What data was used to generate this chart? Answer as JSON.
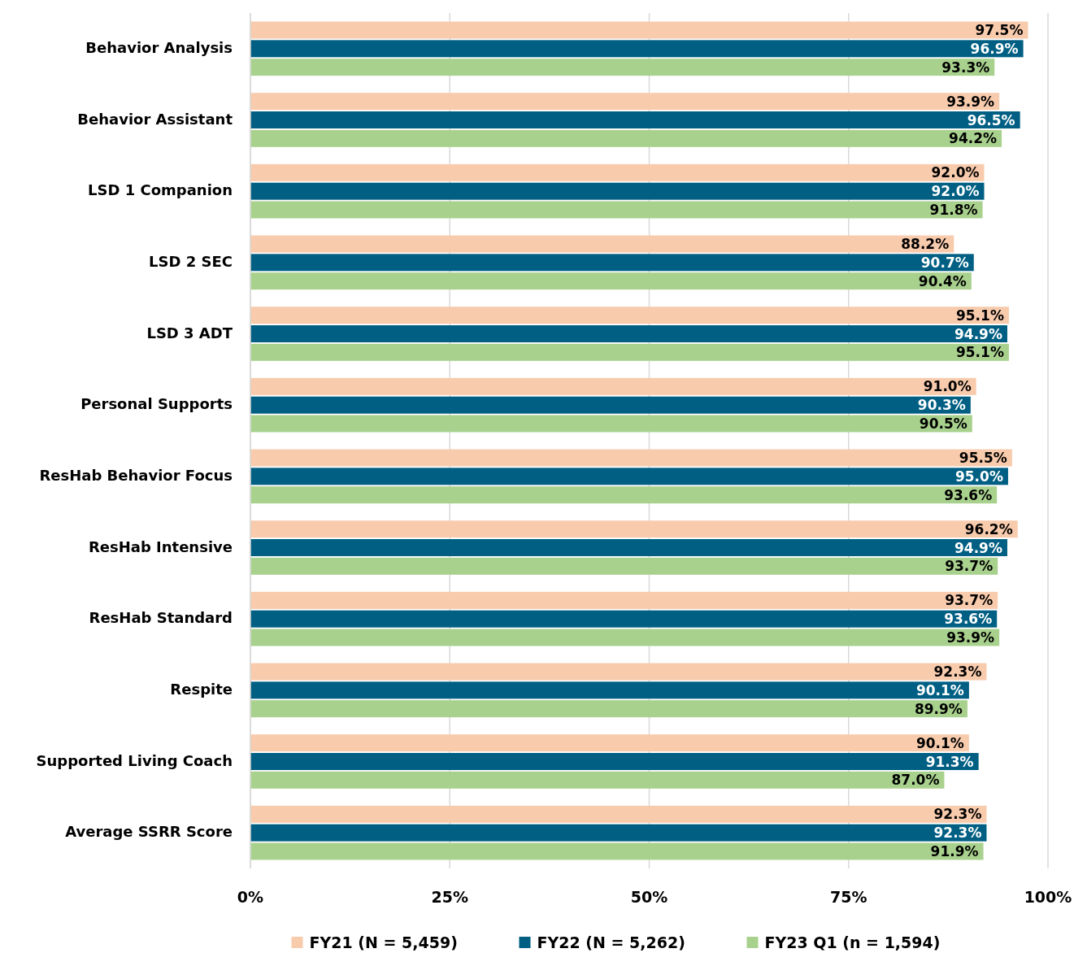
{
  "chart_data": {
    "type": "bar",
    "orientation": "horizontal",
    "categories": [
      "Behavior Analysis",
      "Behavior Assistant",
      "LSD 1 Companion",
      "LSD 2 SEC",
      "LSD 3 ADT",
      "Personal Supports",
      "ResHab Behavior Focus",
      "ResHab Intensive",
      "ResHab Standard",
      "Respite",
      "Supported Living Coach",
      "Average SSRR Score"
    ],
    "series": [
      {
        "name": "FY21 (N = 5,459)",
        "color": "#f8cbad",
        "values": [
          97.5,
          93.9,
          92.0,
          88.2,
          95.1,
          91.0,
          95.5,
          96.2,
          93.7,
          92.3,
          90.1,
          92.3
        ],
        "value_labels": [
          "97.5%",
          "93.9%",
          "92.0%",
          "88.2%",
          "95.1%",
          "91.0%",
          "95.5%",
          "96.2%",
          "93.7%",
          "92.3%",
          "90.1%",
          "92.3%"
        ]
      },
      {
        "name": "FY22 (N = 5,262)",
        "color": "#005f83",
        "values": [
          96.9,
          96.5,
          92.0,
          90.7,
          94.9,
          90.3,
          95.0,
          94.9,
          93.6,
          90.1,
          91.3,
          92.3
        ],
        "value_labels": [
          "96.9%",
          "96.5%",
          "92.0%",
          "90.7%",
          "94.9%",
          "90.3%",
          "95.0%",
          "94.9%",
          "93.6%",
          "90.1%",
          "91.3%",
          "92.3%"
        ]
      },
      {
        "name": "FY23 Q1 (n = 1,594)",
        "color": "#a9d18e",
        "values": [
          93.3,
          94.2,
          91.8,
          90.4,
          95.1,
          90.5,
          93.6,
          93.7,
          93.9,
          89.9,
          87.0,
          91.9
        ],
        "value_labels": [
          "93.3%",
          "94.2%",
          "91.8%",
          "90.4%",
          "95.1%",
          "90.5%",
          "93.6%",
          "93.7%",
          "93.9%",
          "89.9%",
          "87.0%",
          "91.9%"
        ]
      }
    ],
    "xlim": [
      0,
      100
    ],
    "xticks": [
      {
        "value": 0,
        "label": "0%"
      },
      {
        "value": 25,
        "label": "25%"
      },
      {
        "value": 50,
        "label": "50%"
      },
      {
        "value": 75,
        "label": "75%"
      },
      {
        "value": 100,
        "label": "100%"
      }
    ],
    "grid": "x",
    "legend": "bottom"
  }
}
